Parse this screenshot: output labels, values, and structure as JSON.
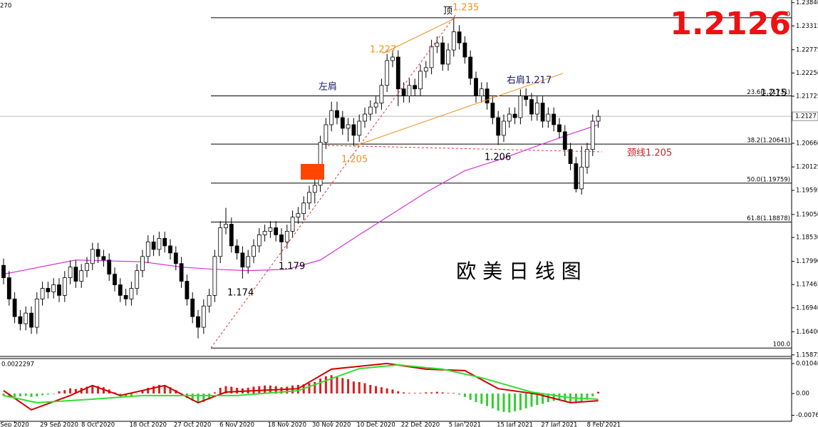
{
  "chart_data": {
    "type": "candlestick",
    "corner_label": "270",
    "overlay_title": "欧 美 日 线 图",
    "big_price": 1.2126,
    "last_price": 1.2127,
    "ylim": [
      1.1584,
      1.239
    ],
    "yticks": [
      {
        "value": 1.2384,
        "label": "1.23840"
      },
      {
        "value": 1.23315,
        "label": "1.23315"
      },
      {
        "value": 1.22775,
        "label": "1.22775"
      },
      {
        "value": 1.2225,
        "label": "1.22250"
      },
      {
        "value": 1.21725,
        "label": "1.21725"
      },
      {
        "value": 1.2066,
        "label": "1.20660"
      },
      {
        "value": 1.20125,
        "label": "1.20125"
      },
      {
        "value": 1.19595,
        "label": "1.19595"
      },
      {
        "value": 1.1905,
        "label": "1.19050"
      },
      {
        "value": 1.1853,
        "label": "1.18530"
      },
      {
        "value": 1.1799,
        "label": "1.17990"
      },
      {
        "value": 1.17465,
        "label": "1.17465"
      },
      {
        "value": 1.1694,
        "label": "1.16940"
      },
      {
        "value": 1.164,
        "label": "1.16400"
      },
      {
        "value": 1.15875,
        "label": "1.15875"
      }
    ],
    "xticks": [
      {
        "value": 2,
        "label": "Sep 2020"
      },
      {
        "value": 10,
        "label": "29 Sep 2020"
      },
      {
        "value": 17,
        "label": "8 Oct 2020"
      },
      {
        "value": 26,
        "label": "18 Oct 2020"
      },
      {
        "value": 34,
        "label": "27 Oct 2020"
      },
      {
        "value": 42,
        "label": "6 Nov 2020"
      },
      {
        "value": 51,
        "label": "18 Nov 2020"
      },
      {
        "value": 59,
        "label": "30 Nov 2020"
      },
      {
        "value": 67,
        "label": "10 Dec 2020"
      },
      {
        "value": 75,
        "label": "22 Dec 2020"
      },
      {
        "value": 83,
        "label": "5 Jan 2021"
      },
      {
        "value": 92,
        "label": "15 Jan 2021"
      },
      {
        "value": 100,
        "label": "27 Jan 2021"
      },
      {
        "value": 108,
        "label": "8 Feb 2021"
      }
    ],
    "fib_levels": [
      {
        "value": 1.235,
        "label": "0"
      },
      {
        "value": 1.21731,
        "label": "23.6(1.21731)"
      },
      {
        "value": 1.20641,
        "label": "38.2(1.20641)"
      },
      {
        "value": 1.19759,
        "label": "50.0(1.19759)"
      },
      {
        "value": 1.18878,
        "label": "61.8(1.18878)"
      },
      {
        "value": 1.1603,
        "label": "100.0"
      }
    ],
    "annotations": [
      "顶",
      "1.235",
      "1.227",
      "左肩",
      "右肩1.217",
      "1.205",
      "1.206",
      "颈线1.205",
      "1.179",
      "1.174",
      "1.215"
    ],
    "up_color": "#ffffff",
    "down_color": "#000000",
    "ma_color": "#d633d6",
    "ohlc": [
      [
        1.179,
        1.1805,
        1.1747,
        1.1762
      ],
      [
        1.1762,
        1.1777,
        1.1699,
        1.1714
      ],
      [
        1.1714,
        1.1729,
        1.1659,
        1.1674
      ],
      [
        1.1674,
        1.1689,
        1.1643,
        1.1658
      ],
      [
        1.1658,
        1.1697,
        1.1643,
        1.1682
      ],
      [
        1.1682,
        1.1697,
        1.1635,
        1.165
      ],
      [
        1.165,
        1.1729,
        1.1635,
        1.1714
      ],
      [
        1.1714,
        1.1753,
        1.1699,
        1.1738
      ],
      [
        1.1738,
        1.1753,
        1.1715,
        1.173
      ],
      [
        1.173,
        1.1761,
        1.1715,
        1.1746
      ],
      [
        1.1746,
        1.1761,
        1.1707,
        1.1722
      ],
      [
        1.1722,
        1.1777,
        1.1707,
        1.1762
      ],
      [
        1.1762,
        1.1801,
        1.1747,
        1.1786
      ],
      [
        1.1786,
        1.1801,
        1.1739,
        1.1754
      ],
      [
        1.1754,
        1.1793,
        1.1739,
        1.1778
      ],
      [
        1.1778,
        1.1809,
        1.1763,
        1.1794
      ],
      [
        1.1794,
        1.1841,
        1.1779,
        1.1826
      ],
      [
        1.1826,
        1.1841,
        1.1795,
        1.181
      ],
      [
        1.181,
        1.1825,
        1.1787,
        1.1802
      ],
      [
        1.1802,
        1.1817,
        1.1755,
        1.177
      ],
      [
        1.177,
        1.1785,
        1.1731,
        1.1746
      ],
      [
        1.1746,
        1.1761,
        1.1707,
        1.1722
      ],
      [
        1.1722,
        1.1737,
        1.1699,
        1.1714
      ],
      [
        1.1714,
        1.1753,
        1.1699,
        1.1738
      ],
      [
        1.1738,
        1.1793,
        1.1723,
        1.1778
      ],
      [
        1.1778,
        1.1825,
        1.1763,
        1.181
      ],
      [
        1.181,
        1.1858,
        1.1795,
        1.1843
      ],
      [
        1.1843,
        1.1858,
        1.1811,
        1.1826
      ],
      [
        1.1826,
        1.1866,
        1.1811,
        1.1851
      ],
      [
        1.1851,
        1.1866,
        1.1819,
        1.1834
      ],
      [
        1.1834,
        1.1849,
        1.1803,
        1.1818
      ],
      [
        1.1818,
        1.1833,
        1.1779,
        1.1794
      ],
      [
        1.1794,
        1.1809,
        1.1739,
        1.1754
      ],
      [
        1.1754,
        1.1769,
        1.1699,
        1.1714
      ],
      [
        1.1714,
        1.1729,
        1.1659,
        1.1674
      ],
      [
        1.1674,
        1.1689,
        1.1625,
        1.165
      ],
      [
        1.165,
        1.1713,
        1.1635,
        1.1698
      ],
      [
        1.1698,
        1.1737,
        1.1683,
        1.1722
      ],
      [
        1.1722,
        1.1825,
        1.1707,
        1.181
      ],
      [
        1.181,
        1.189,
        1.1795,
        1.1875
      ],
      [
        1.1875,
        1.192,
        1.186,
        1.1883
      ],
      [
        1.1883,
        1.1898,
        1.1819,
        1.1834
      ],
      [
        1.1834,
        1.1849,
        1.1803,
        1.1818
      ],
      [
        1.1818,
        1.1833,
        1.176,
        1.1786
      ],
      [
        1.1786,
        1.1825,
        1.1771,
        1.181
      ],
      [
        1.181,
        1.1849,
        1.1795,
        1.1834
      ],
      [
        1.1834,
        1.1874,
        1.1819,
        1.1859
      ],
      [
        1.1859,
        1.1882,
        1.1844,
        1.1867
      ],
      [
        1.1867,
        1.189,
        1.1852,
        1.1875
      ],
      [
        1.1875,
        1.189,
        1.1844,
        1.1859
      ],
      [
        1.1859,
        1.1874,
        1.18,
        1.1843
      ],
      [
        1.1843,
        1.1882,
        1.1828,
        1.1867
      ],
      [
        1.1867,
        1.1914,
        1.1852,
        1.1899
      ],
      [
        1.1899,
        1.1922,
        1.1884,
        1.1907
      ],
      [
        1.1907,
        1.1946,
        1.1892,
        1.1931
      ],
      [
        1.1931,
        1.197,
        1.1916,
        1.1955
      ],
      [
        1.1955,
        1.1986,
        1.193,
        1.1971
      ],
      [
        1.1971,
        1.2083,
        1.1956,
        1.2068
      ],
      [
        1.2068,
        1.2123,
        1.2053,
        1.2108
      ],
      [
        1.2108,
        1.216,
        1.2093,
        1.214
      ],
      [
        1.214,
        1.216,
        1.2109,
        1.2124
      ],
      [
        1.2124,
        1.2139,
        1.2085,
        1.21
      ],
      [
        1.21,
        1.2123,
        1.207,
        1.2108
      ],
      [
        1.2108,
        1.2123,
        1.206,
        1.2084
      ],
      [
        1.2084,
        1.2131,
        1.2069,
        1.2116
      ],
      [
        1.2116,
        1.2147,
        1.2101,
        1.2132
      ],
      [
        1.2132,
        1.2163,
        1.2117,
        1.2148
      ],
      [
        1.2148,
        1.2172,
        1.2133,
        1.2157
      ],
      [
        1.2157,
        1.2212,
        1.2142,
        1.2197
      ],
      [
        1.2197,
        1.2268,
        1.2182,
        1.2253
      ],
      [
        1.2253,
        1.2276,
        1.2238,
        1.2261
      ],
      [
        1.2261,
        1.2276,
        1.215,
        1.2189
      ],
      [
        1.2189,
        1.2204,
        1.2158,
        1.2173
      ],
      [
        1.2173,
        1.2212,
        1.2158,
        1.2197
      ],
      [
        1.2197,
        1.2212,
        1.2174,
        1.2189
      ],
      [
        1.2189,
        1.2244,
        1.2174,
        1.2229
      ],
      [
        1.2229,
        1.2252,
        1.2214,
        1.2237
      ],
      [
        1.2237,
        1.23,
        1.2222,
        1.2285
      ],
      [
        1.2285,
        1.2308,
        1.227,
        1.2293
      ],
      [
        1.2293,
        1.2308,
        1.223,
        1.2245
      ],
      [
        1.2245,
        1.2292,
        1.223,
        1.2277
      ],
      [
        1.2277,
        1.2349,
        1.2262,
        1.2318
      ],
      [
        1.2318,
        1.2333,
        1.2278,
        1.2293
      ],
      [
        1.2293,
        1.2308,
        1.2246,
        1.2261
      ],
      [
        1.2261,
        1.2276,
        1.2198,
        1.2213
      ],
      [
        1.2213,
        1.2228,
        1.2158,
        1.2173
      ],
      [
        1.2173,
        1.2204,
        1.2158,
        1.2189
      ],
      [
        1.2189,
        1.2204,
        1.2142,
        1.2157
      ],
      [
        1.2157,
        1.2172,
        1.2109,
        1.2124
      ],
      [
        1.2124,
        1.2139,
        1.2062,
        1.2084
      ],
      [
        1.2084,
        1.2131,
        1.2069,
        1.2116
      ],
      [
        1.2116,
        1.2147,
        1.2101,
        1.2132
      ],
      [
        1.2132,
        1.2147,
        1.2109,
        1.2124
      ],
      [
        1.2124,
        1.2188,
        1.2109,
        1.2173
      ],
      [
        1.2173,
        1.219,
        1.215,
        1.2165
      ],
      [
        1.2165,
        1.218,
        1.2117,
        1.2132
      ],
      [
        1.2132,
        1.2172,
        1.2117,
        1.2157
      ],
      [
        1.2157,
        1.2172,
        1.2101,
        1.2116
      ],
      [
        1.2116,
        1.2147,
        1.2101,
        1.2132
      ],
      [
        1.2132,
        1.2147,
        1.2093,
        1.2108
      ],
      [
        1.2108,
        1.2123,
        1.2077,
        1.2092
      ],
      [
        1.2092,
        1.2107,
        1.2037,
        1.2052
      ],
      [
        1.2052,
        1.2067,
        1.2005,
        1.202
      ],
      [
        1.202,
        1.2035,
        1.1955,
        1.1963
      ],
      [
        1.1963,
        1.206,
        1.195,
        1.2012
      ],
      [
        1.2012,
        1.2067,
        1.1997,
        1.2052
      ],
      [
        1.2052,
        1.2131,
        1.2037,
        1.2116
      ],
      [
        1.2116,
        1.2142,
        1.2101,
        1.2127
      ]
    ],
    "ma_x": [
      0,
      13,
      25,
      32,
      38,
      44,
      51,
      57,
      64,
      70,
      76,
      83,
      89,
      96,
      102,
      107
    ],
    "ma_values": [
      1.177,
      1.1802,
      1.1798,
      1.1786,
      1.1781,
      1.1778,
      1.1781,
      1.1802,
      1.1859,
      1.1907,
      1.1955,
      1.2004,
      1.2028,
      1.206,
      1.2087,
      1.2108
    ],
    "macd": {
      "label": "0.0022297",
      "ylim": [
        -0.0097,
        0.0122
      ],
      "yticks": [
        0.01046,
        {
          "value": 0,
          "label": "0.00"
        },
        -0.0076
      ],
      "histogram": [
        -0.0008,
        -0.001,
        -0.0012,
        -0.001,
        -0.0008,
        -0.0012,
        -0.001,
        -0.0006,
        -0.0004,
        -0.0002,
        0.0008,
        0.0012,
        0.0018,
        0.0016,
        0.002,
        0.0024,
        0.0028,
        0.0026,
        0.0022,
        0.0014,
        0.0004,
        -0.0006,
        -0.001,
        -0.0008,
        -0.0002,
        0.0012,
        0.002,
        0.0026,
        0.003,
        0.0028,
        0.0022,
        0.0012,
        -0.0004,
        -0.0016,
        -0.0026,
        -0.0034,
        -0.003,
        -0.002,
        0.0004,
        0.002,
        0.0026,
        0.0024,
        0.002,
        0.0018,
        0.002,
        0.0024,
        0.0026,
        0.0028,
        0.0028,
        0.0026,
        0.0022,
        0.0024,
        0.0028,
        0.003,
        0.0032,
        0.0036,
        0.004,
        0.0052,
        0.006,
        0.0064,
        0.006,
        0.0054,
        0.005,
        0.0042,
        0.004,
        0.0036,
        0.003,
        0.0026,
        0.0022,
        0.0018,
        0.0014,
        0.0008,
        0.0004,
        0.0002,
        0.0002,
        0.0002,
        0.0004,
        0.0004,
        0.0006,
        0.0004,
        0.0002,
        0.0002,
        -0.0004,
        -0.0012,
        -0.0022,
        -0.003,
        -0.0036,
        -0.0044,
        -0.0052,
        -0.006,
        -0.0064,
        -0.0066,
        -0.0062,
        -0.0058,
        -0.0052,
        -0.0046,
        -0.004,
        -0.0036,
        -0.003,
        -0.0026,
        -0.0024,
        -0.0026,
        -0.003,
        -0.0034,
        -0.003,
        -0.0022,
        -0.001,
        0.0006
      ],
      "pos_color": "#d42020",
      "neg_color": "#33cc33",
      "lines": [
        {
          "color": "#d00000",
          "x": [
            0,
            5,
            12,
            16,
            21,
            29,
            35,
            40,
            53,
            59,
            69,
            76,
            83,
            89,
            96,
            102,
            107
          ],
          "values": [
            0.001,
            -0.0057,
            -0.0007,
            0.0028,
            -0.0007,
            0.0028,
            -0.0032,
            0.0005,
            0.0017,
            0.0085,
            0.0105,
            0.0085,
            0.008,
            0.0017,
            -0.0002,
            -0.0032,
            -0.0025
          ]
        },
        {
          "color": "#33dd33",
          "x": [
            0,
            6,
            16,
            25,
            35,
            42,
            53,
            64,
            71,
            79,
            86,
            95,
            102,
            107
          ],
          "values": [
            -0.0007,
            -0.0032,
            -0.002,
            -0.0007,
            -0.0007,
            -0.0007,
            0.001,
            0.0087,
            0.01,
            0.0085,
            0.0055,
            0.0005,
            -0.0015,
            -0.002
          ]
        }
      ]
    }
  }
}
